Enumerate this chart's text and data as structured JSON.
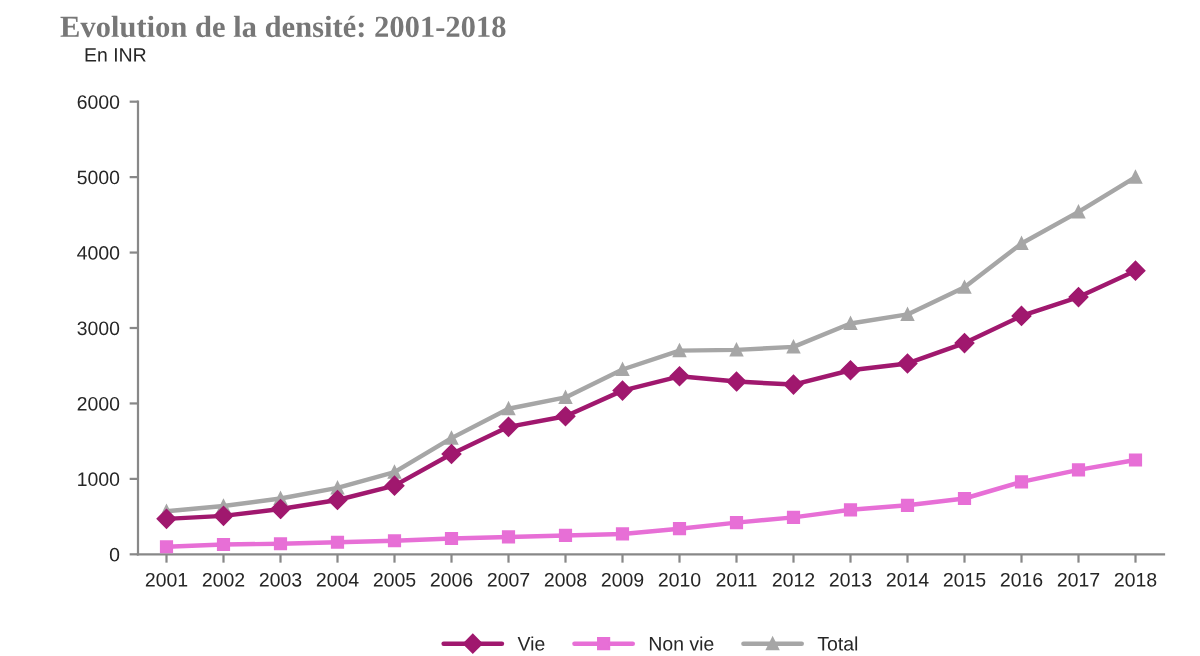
{
  "chart_data": {
    "type": "line",
    "title": "Evolution de la densité: 2001-2018",
    "ylabel": "En INR",
    "categories": [
      "2001",
      "2002",
      "2003",
      "2004",
      "2005",
      "2006",
      "2007",
      "2008",
      "2009",
      "2010",
      "2011",
      "2012",
      "2013",
      "2014",
      "2015",
      "2016",
      "2017",
      "2018"
    ],
    "series": [
      {
        "name": "Vie",
        "color": "#a0186e",
        "marker": "diamond",
        "values": [
          470,
          510,
          600,
          720,
          910,
          1330,
          1690,
          1830,
          2170,
          2360,
          2290,
          2250,
          2440,
          2530,
          2800,
          3160,
          3410,
          3760
        ]
      },
      {
        "name": "Non vie",
        "color": "#e76fd6",
        "marker": "square",
        "values": [
          100,
          130,
          140,
          160,
          180,
          210,
          230,
          250,
          270,
          340,
          420,
          490,
          590,
          650,
          740,
          960,
          1120,
          1250
        ]
      },
      {
        "name": "Total",
        "color": "#a6a6a6",
        "marker": "triangle",
        "values": [
          570,
          640,
          740,
          880,
          1090,
          1540,
          1930,
          2080,
          2450,
          2700,
          2710,
          2750,
          3060,
          3180,
          3540,
          4120,
          4540,
          5000
        ]
      }
    ],
    "ylim": [
      0,
      6000
    ],
    "yticks": [
      0,
      1000,
      2000,
      3000,
      4000,
      5000,
      6000
    ],
    "grid": false,
    "legend": "bottom",
    "line_style": "solid"
  }
}
